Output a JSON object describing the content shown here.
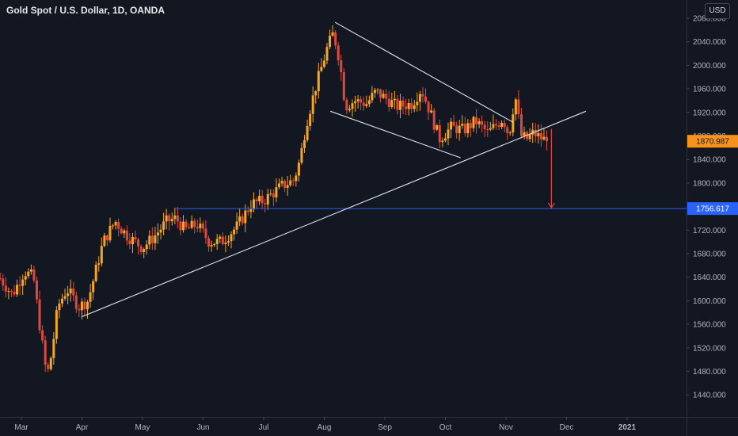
{
  "header": {
    "title": "Gold Spot / U.S. Dollar, 1D, OANDA",
    "currency_button": "USD"
  },
  "colors": {
    "background": "#131722",
    "up": "#f5a623",
    "down": "#e0483e",
    "price_tag": "#f7931a",
    "level_line": "#2962ff",
    "trendline": "#e0e3eb"
  },
  "chart_data": {
    "type": "candlestick",
    "title": "Gold Spot / U.S. Dollar, 1D, OANDA",
    "ylim": [
      1400,
      2090
    ],
    "y_ticks": [
      "2080.000",
      "2040.000",
      "2000.000",
      "1960.000",
      "1920.000",
      "1880.000",
      "1840.000",
      "1800.000",
      "1760.000",
      "1720.000",
      "1680.000",
      "1640.000",
      "1600.000",
      "1560.000",
      "1520.000",
      "1480.000",
      "1440.000"
    ],
    "x_ticks": [
      {
        "label": "Mar",
        "x": 0.0
      },
      {
        "label": "Apr",
        "x": 1.0
      },
      {
        "label": "May",
        "x": 2.0
      },
      {
        "label": "Jun",
        "x": 3.0
      },
      {
        "label": "Jul",
        "x": 4.0
      },
      {
        "label": "Aug",
        "x": 5.0
      },
      {
        "label": "Sep",
        "x": 6.0
      },
      {
        "label": "Oct",
        "x": 7.0
      },
      {
        "label": "Nov",
        "x": 8.0
      },
      {
        "label": "Dec",
        "x": 9.0
      },
      {
        "label": "2021",
        "x": 10.0,
        "bold": true
      }
    ],
    "current_price": {
      "label": "1870.987",
      "value": 1870.987
    },
    "level": {
      "label": "1756.617",
      "value": 1756.617
    },
    "anchors": [
      [
        -0.4,
        1645
      ],
      [
        -0.15,
        1610
      ],
      [
        0.05,
        1650
      ],
      [
        0.2,
        1640
      ],
      [
        0.3,
        1560
      ],
      [
        0.42,
        1470
      ],
      [
        0.5,
        1510
      ],
      [
        0.6,
        1590
      ],
      [
        0.75,
        1620
      ],
      [
        0.95,
        1590
      ],
      [
        1.1,
        1600
      ],
      [
        1.35,
        1700
      ],
      [
        1.55,
        1735
      ],
      [
        1.75,
        1710
      ],
      [
        2.0,
        1690
      ],
      [
        2.2,
        1710
      ],
      [
        2.4,
        1735
      ],
      [
        2.55,
        1740
      ],
      [
        2.7,
        1720
      ],
      [
        2.9,
        1730
      ],
      [
        3.1,
        1700
      ],
      [
        3.3,
        1700
      ],
      [
        3.55,
        1725
      ],
      [
        3.8,
        1765
      ],
      [
        4.0,
        1770
      ],
      [
        4.3,
        1795
      ],
      [
        4.5,
        1805
      ],
      [
        4.6,
        1840
      ],
      [
        4.7,
        1900
      ],
      [
        4.85,
        1960
      ],
      [
        5.05,
        2030
      ],
      [
        5.15,
        2055
      ],
      [
        5.25,
        2010
      ],
      [
        5.35,
        1930
      ],
      [
        5.5,
        1940
      ],
      [
        5.7,
        1935
      ],
      [
        5.85,
        1955
      ],
      [
        6.0,
        1945
      ],
      [
        6.2,
        1930
      ],
      [
        6.45,
        1935
      ],
      [
        6.6,
        1960
      ],
      [
        6.75,
        1920
      ],
      [
        6.9,
        1875
      ],
      [
        7.1,
        1895
      ],
      [
        7.3,
        1890
      ],
      [
        7.5,
        1905
      ],
      [
        7.7,
        1885
      ],
      [
        7.85,
        1900
      ],
      [
        7.95,
        1910
      ],
      [
        8.05,
        1880
      ],
      [
        8.15,
        1950
      ],
      [
        8.25,
        1880
      ],
      [
        8.35,
        1875
      ],
      [
        8.45,
        1885
      ],
      [
        8.6,
        1875
      ],
      [
        8.7,
        1870.987
      ]
    ],
    "trendlines": [
      {
        "name": "rising-support",
        "from": [
          1.0,
          1573
        ],
        "to": [
          9.32,
          1922
        ]
      },
      {
        "name": "descending-upper",
        "from": [
          5.18,
          2073
        ],
        "to": [
          8.12,
          1903
        ]
      },
      {
        "name": "descending-lower",
        "from": [
          5.1,
          1922
        ],
        "to": [
          7.25,
          1843
        ]
      }
    ],
    "target_arrow": {
      "from": [
        8.75,
        1892
      ],
      "to": [
        8.75,
        1758
      ]
    }
  }
}
